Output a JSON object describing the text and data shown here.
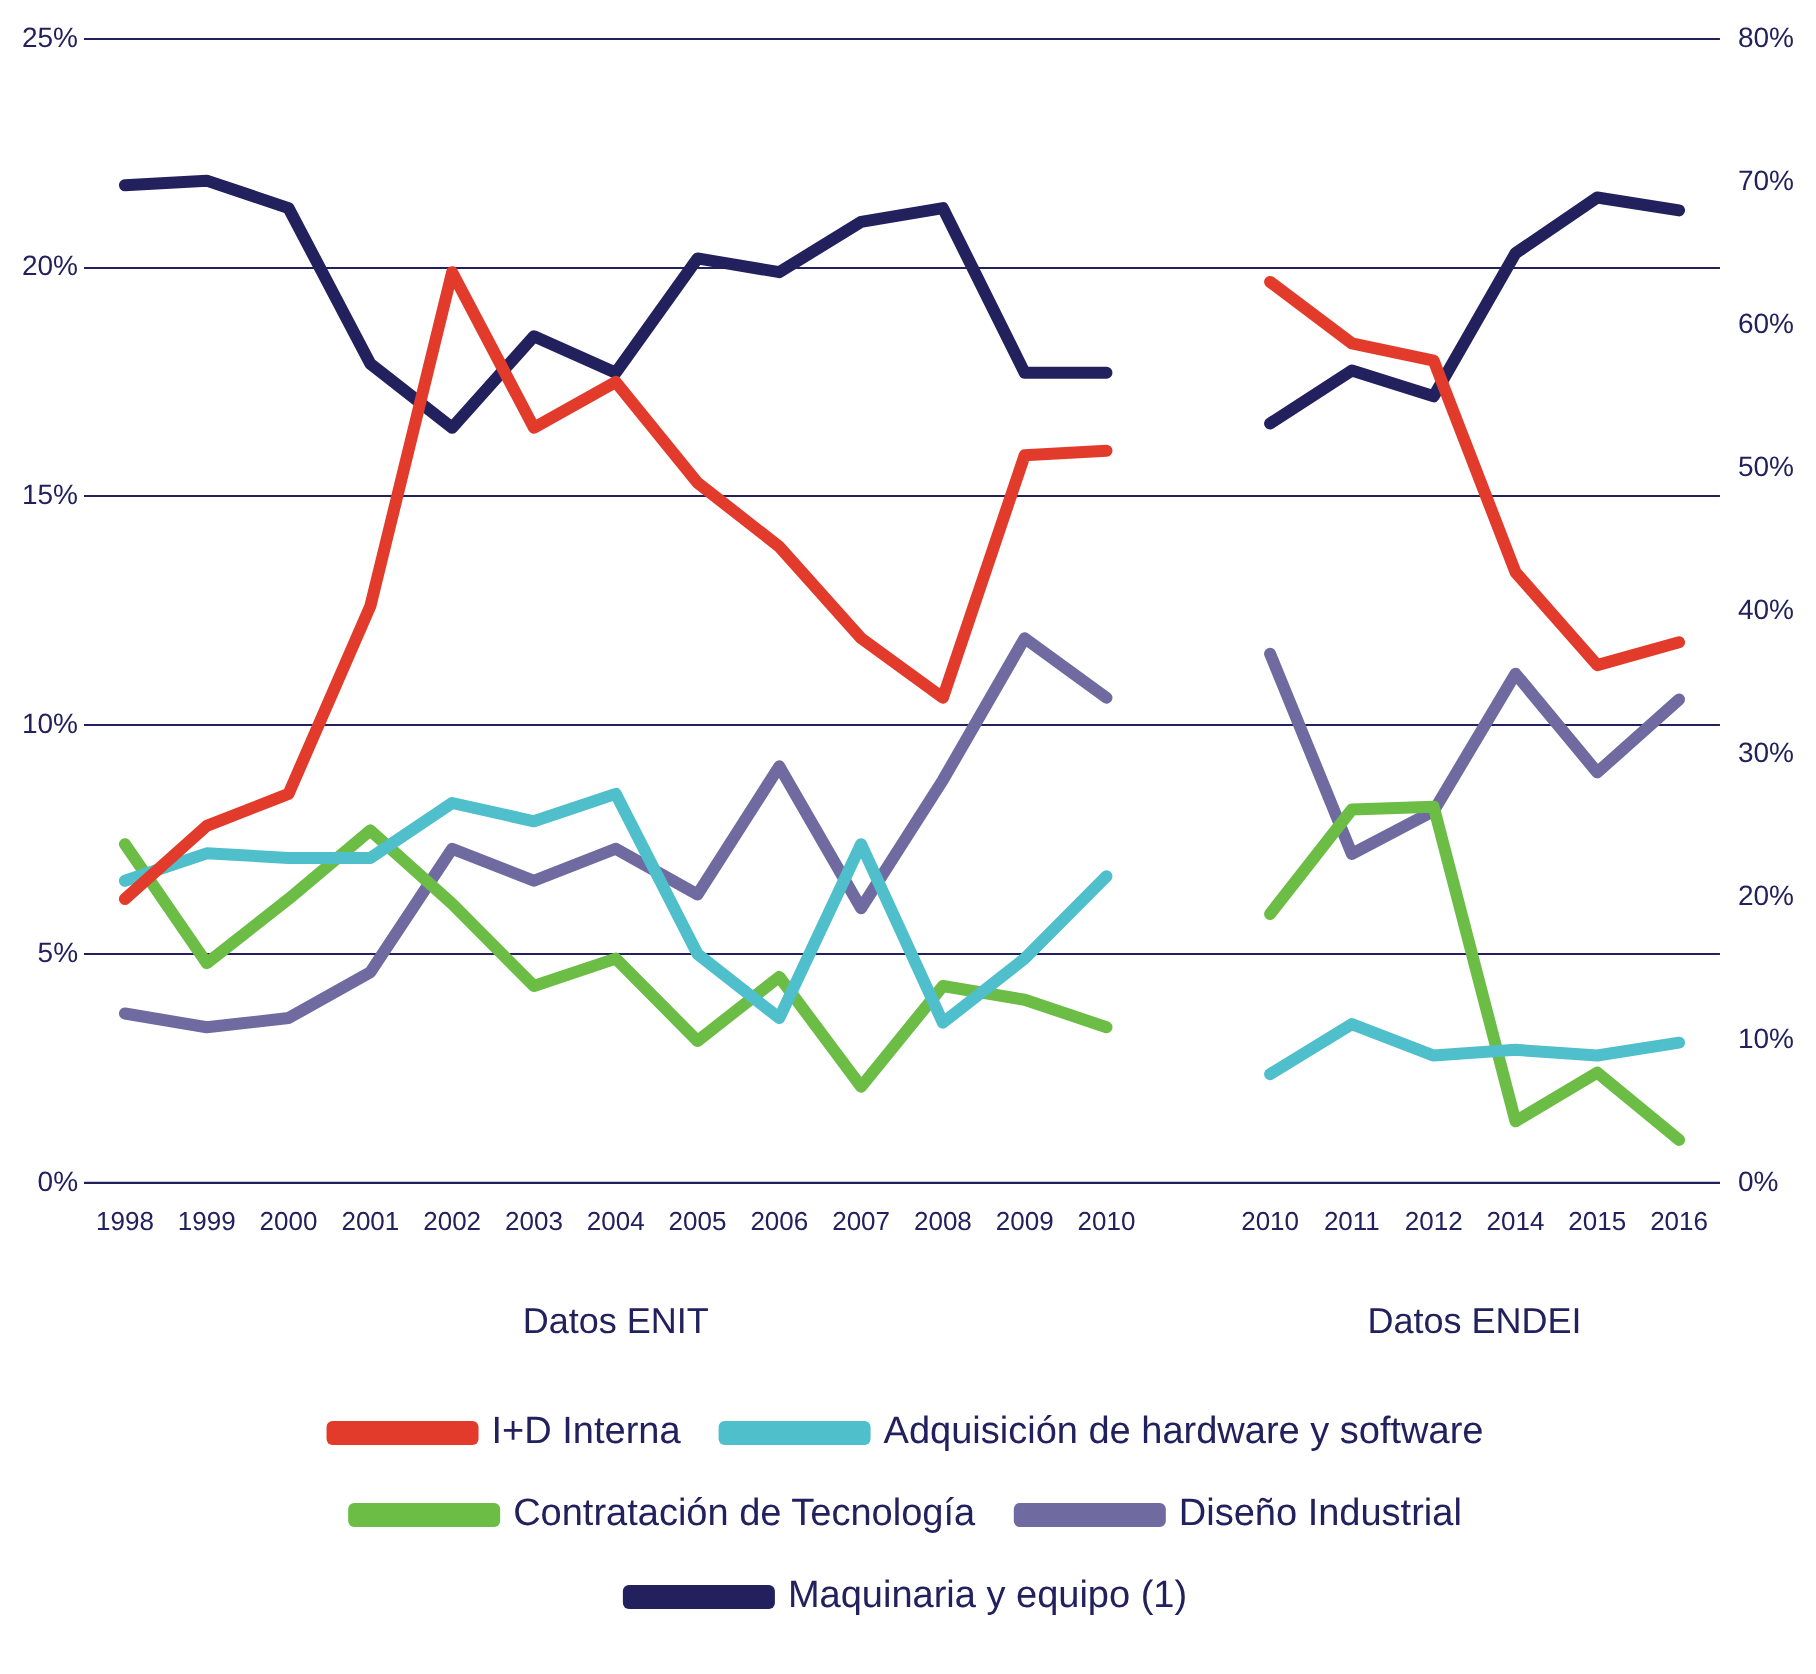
{
  "chart_data": {
    "type": "line",
    "categories": [
      "1998",
      "1999",
      "2000",
      "2001",
      "2002",
      "2003",
      "2004",
      "2005",
      "2006",
      "2007",
      "2008",
      "2009",
      "2010",
      null,
      "2010",
      "2011",
      "2012",
      "2014",
      "2015",
      "2016"
    ],
    "series": [
      {
        "name": "I+D Interna",
        "color": "#e33b2b",
        "values": [
          6.2,
          7.8,
          8.5,
          12.6,
          19.9,
          16.5,
          17.5,
          15.3,
          13.9,
          11.9,
          10.6,
          15.9,
          16.0,
          null,
          null,
          null,
          null,
          null,
          null,
          null
        ]
      },
      {
        "name": "Adquisición de hardware y software",
        "color": "#4fbfcc",
        "values": [
          6.6,
          7.2,
          7.1,
          7.1,
          8.3,
          7.9,
          8.5,
          5.0,
          3.6,
          7.4,
          3.5,
          4.9,
          6.7,
          null,
          null,
          null,
          null,
          null,
          null,
          null
        ]
      },
      {
        "name": "Contratación de Tecnología",
        "color": "#6cbd45",
        "values": [
          7.4,
          4.8,
          6.2,
          7.7,
          6.1,
          4.3,
          4.9,
          3.1,
          4.5,
          2.1,
          4.3,
          4.0,
          3.4,
          null,
          null,
          null,
          null,
          null,
          null,
          null
        ]
      },
      {
        "name": "Diseño Industrial",
        "color": "#6f6a9f",
        "values": [
          3.7,
          3.4,
          3.6,
          4.6,
          7.3,
          6.6,
          7.3,
          6.3,
          9.1,
          6.0,
          8.8,
          11.9,
          10.6,
          null,
          null,
          null,
          null,
          null,
          null,
          null
        ]
      },
      {
        "name": "Maquinaria y equipo (1)",
        "color": "#22215e",
        "values": [
          21.8,
          21.9,
          21.3,
          17.9,
          16.5,
          18.5,
          17.7,
          20.2,
          19.9,
          21.0,
          21.3,
          17.7,
          17.7,
          null,
          null,
          null,
          null,
          null,
          null,
          null
        ]
      },
      {
        "color": "#e33b2b",
        "axis": "y2",
        "values": [
          null,
          null,
          null,
          null,
          null,
          null,
          null,
          null,
          null,
          null,
          null,
          null,
          null,
          null,
          63.0,
          58.7,
          57.5,
          42.7,
          36.2,
          37.8
        ]
      },
      {
        "color": "#4fbfcc",
        "axis": "y2",
        "values": [
          null,
          null,
          null,
          null,
          null,
          null,
          null,
          null,
          null,
          null,
          null,
          null,
          null,
          null,
          7.6,
          11.1,
          8.9,
          9.3,
          8.9,
          9.8
        ]
      },
      {
        "color": "#6cbd45",
        "axis": "y2",
        "values": [
          null,
          null,
          null,
          null,
          null,
          null,
          null,
          null,
          null,
          null,
          null,
          null,
          null,
          null,
          18.8,
          26.1,
          26.3,
          4.3,
          7.7,
          3.0
        ]
      },
      {
        "color": "#6f6a9f",
        "axis": "y2",
        "values": [
          null,
          null,
          null,
          null,
          null,
          null,
          null,
          null,
          null,
          null,
          null,
          null,
          null,
          null,
          37.0,
          23.0,
          26.0,
          35.6,
          28.7,
          33.8
        ]
      },
      {
        "color": "#22215e",
        "axis": "y2",
        "values": [
          null,
          null,
          null,
          null,
          null,
          null,
          null,
          null,
          null,
          null,
          null,
          null,
          null,
          null,
          53.1,
          56.8,
          55.0,
          65.0,
          68.9,
          68.0
        ]
      }
    ],
    "ylim": [
      0,
      25
    ],
    "yticks": [
      {
        "value": 0,
        "label": "0%"
      },
      {
        "value": 5,
        "label": "5%"
      },
      {
        "value": 10,
        "label": "10%"
      },
      {
        "value": 15,
        "label": "15%"
      },
      {
        "value": 20,
        "label": "20%"
      },
      {
        "value": 25,
        "label": "25%"
      }
    ],
    "y2lim": [
      0,
      80
    ],
    "y2ticks": [
      {
        "value": 0,
        "label": "0%"
      },
      {
        "value": 10,
        "label": "10%"
      },
      {
        "value": 20,
        "label": "20%"
      },
      {
        "value": 30,
        "label": "30%"
      },
      {
        "value": 40,
        "label": "40%"
      },
      {
        "value": 50,
        "label": "50%"
      },
      {
        "value": 60,
        "label": "60%"
      },
      {
        "value": 70,
        "label": "70%"
      },
      {
        "value": 80,
        "label": "80%"
      }
    ],
    "annotations": [
      "Datos ENIT",
      "Datos ENDEI"
    ],
    "grid": "y",
    "legend": "bottom",
    "marker": "none",
    "line_style": "solid"
  }
}
